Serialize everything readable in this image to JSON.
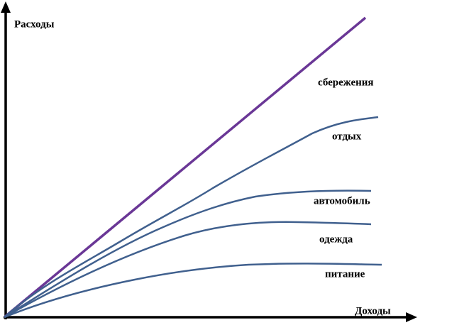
{
  "axes": {
    "y_label": "Расходы",
    "x_label": "Доходы"
  },
  "curves": [
    {
      "label": "сбережения"
    },
    {
      "label": "отдых"
    },
    {
      "label": "автомобиль"
    },
    {
      "label": "одежда"
    },
    {
      "label": "питание"
    }
  ]
}
